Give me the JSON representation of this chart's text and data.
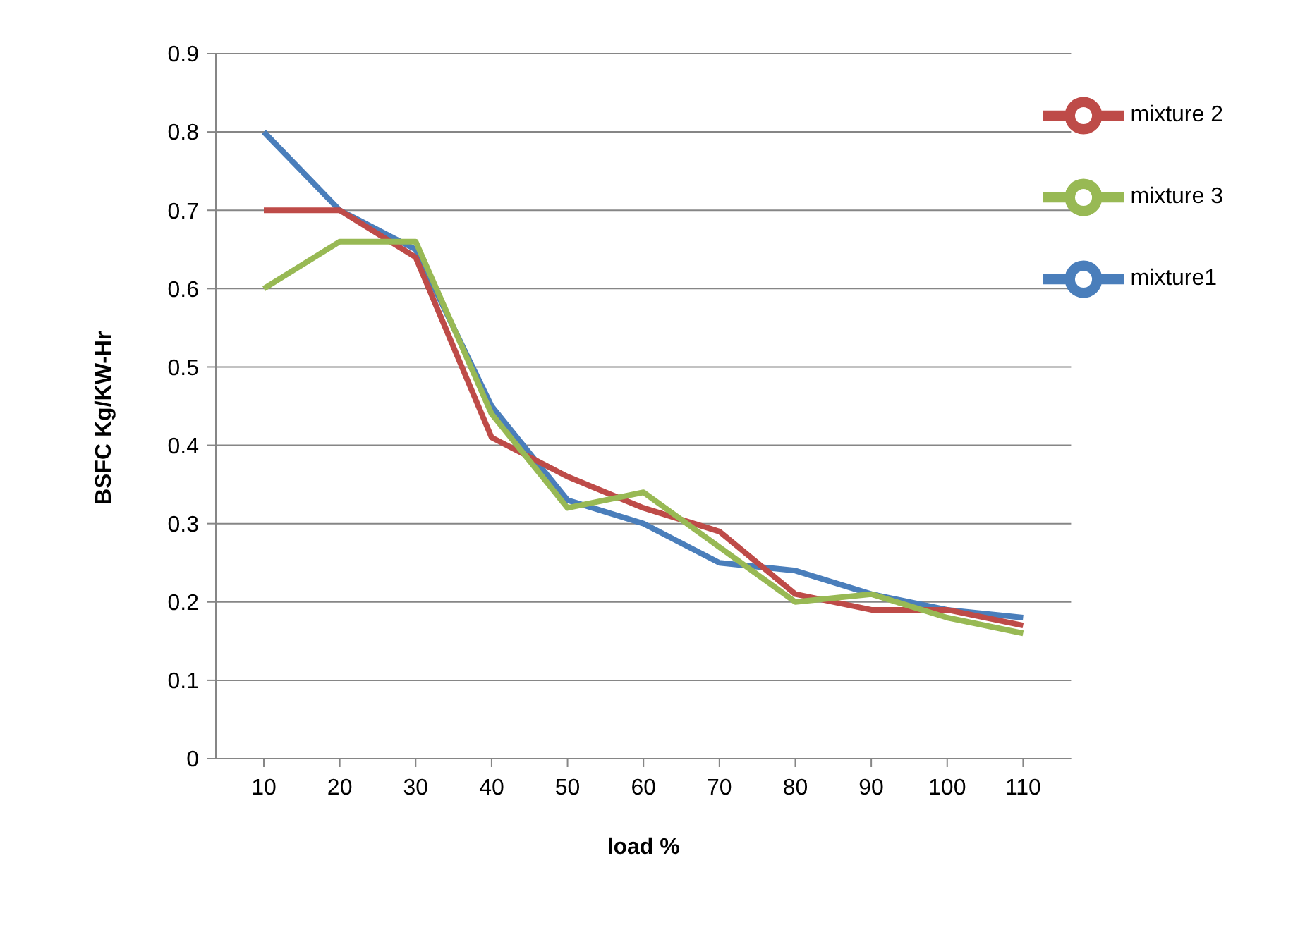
{
  "chart_data": {
    "type": "line",
    "xlabel": "load %",
    "ylabel": "BSFC Kg/KW-Hr",
    "categories": [
      "10",
      "20",
      "30",
      "40",
      "50",
      "60",
      "70",
      "80",
      "90",
      "100",
      "110"
    ],
    "series": [
      {
        "name": "mixture1",
        "color": "#4a7ebb",
        "values": [
          0.8,
          0.7,
          0.65,
          0.45,
          0.33,
          0.3,
          0.25,
          0.24,
          0.21,
          0.19,
          0.18
        ]
      },
      {
        "name": "mixture 2",
        "color": "#be4b48",
        "values": [
          0.7,
          0.7,
          0.64,
          0.41,
          0.36,
          0.32,
          0.29,
          0.21,
          0.19,
          0.19,
          0.17
        ]
      },
      {
        "name": "mixture 3",
        "color": "#98b954",
        "values": [
          0.6,
          0.66,
          0.66,
          0.44,
          0.32,
          0.34,
          0.27,
          0.2,
          0.21,
          0.18,
          0.16
        ]
      }
    ],
    "ylim": [
      0,
      0.9
    ],
    "yticks": [
      0,
      0.1,
      0.2,
      0.3,
      0.4,
      0.5,
      0.6,
      0.7,
      0.8,
      0.9
    ],
    "grid": "y",
    "legend": "top right",
    "marker": "none",
    "line_style": "solid"
  }
}
